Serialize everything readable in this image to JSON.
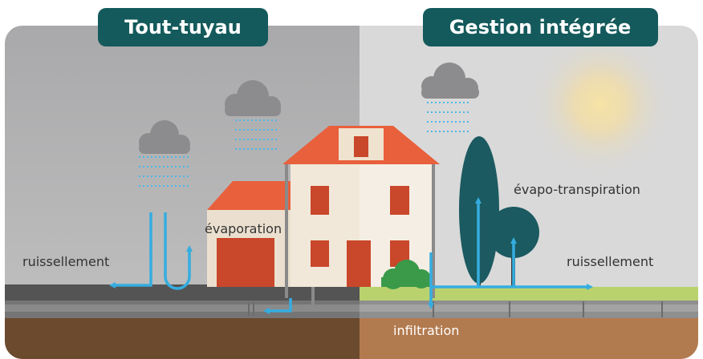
{
  "header": {
    "left_title": "Tout-tuyau",
    "right_title": "Gestion intégrée"
  },
  "labels": {
    "left_runoff": "ruissellement",
    "evaporation": "évaporation",
    "evapotranspiration": "évapo-transpiration",
    "right_runoff": "ruissellement",
    "infiltration": "infiltration"
  }
}
